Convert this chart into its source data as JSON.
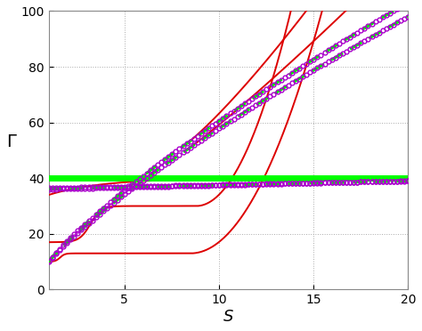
{
  "xlim": [
    1,
    20
  ],
  "ylim": [
    0,
    100
  ],
  "xlabel": "S",
  "ylabel": "Γ",
  "xticks": [
    5,
    10,
    15,
    20
  ],
  "yticks": [
    0,
    20,
    40,
    60,
    80,
    100
  ],
  "figsize": [
    4.74,
    3.72
  ],
  "dpi": 100,
  "grid_color": "#aaaaaa",
  "green_line_y": 40,
  "green_linewidth": 5,
  "marker_size": 3.5,
  "marker_color": "#aa00cc",
  "red_color": "#dd0000",
  "green_dash_color": "#00ee00",
  "n_markers": 100,
  "n_dense": 2000
}
